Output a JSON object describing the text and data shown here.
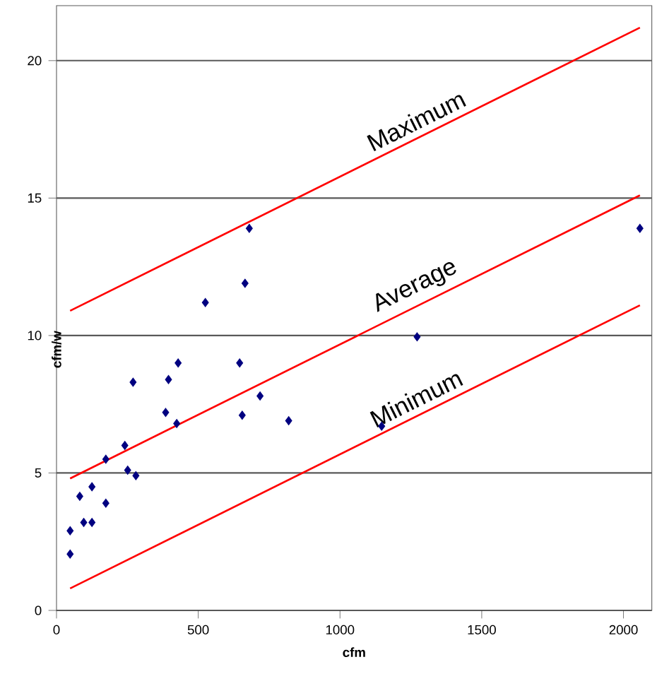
{
  "chart_data": {
    "type": "scatter",
    "xlabel": "cfm",
    "ylabel": "cfm/w",
    "xlim": [
      0,
      2100
    ],
    "ylim": [
      0,
      22
    ],
    "xticks": [
      0,
      500,
      1000,
      1500,
      2000
    ],
    "yticks": [
      0,
      5,
      10,
      15,
      20
    ],
    "grid": "y",
    "marker": "diamond",
    "series": [
      {
        "type": "scatter",
        "color": "#000080",
        "x": [
          48,
          48,
          82,
          96,
          125,
          125,
          174,
          174,
          241,
          251,
          280,
          270,
          385,
          395,
          424,
          429,
          525,
          646,
          655,
          665,
          680,
          718,
          819,
          1147,
          1272,
          2058
        ],
        "values": [
          2.05,
          2.9,
          4.15,
          3.2,
          3.2,
          4.5,
          3.9,
          5.5,
          6.0,
          5.1,
          4.9,
          8.3,
          7.2,
          8.4,
          6.8,
          9.0,
          11.2,
          9.0,
          7.1,
          11.9,
          13.9,
          7.8,
          6.9,
          6.7,
          9.95,
          13.9
        ]
      },
      {
        "type": "line",
        "name": "Maximum",
        "color": "#ff0000",
        "marker": "none",
        "x": [
          48,
          2058
        ],
        "values": [
          10.9,
          21.2
        ]
      },
      {
        "type": "line",
        "name": "Average",
        "color": "#ff0000",
        "marker": "none",
        "x": [
          48,
          2058
        ],
        "values": [
          4.8,
          15.1
        ]
      },
      {
        "type": "line",
        "name": "Minimum",
        "color": "#ff0000",
        "marker": "none",
        "x": [
          48,
          2058
        ],
        "values": [
          0.8,
          11.1
        ]
      }
    ]
  }
}
